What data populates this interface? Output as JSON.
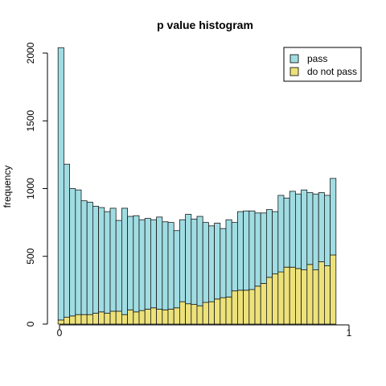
{
  "chart_data": {
    "type": "bar",
    "stacked": true,
    "title": "p value histogram",
    "xlabel": "",
    "ylabel": "frequency",
    "xlim": [
      0,
      1
    ],
    "ylim": [
      0,
      2050
    ],
    "x_ticks": [
      {
        "value": 0,
        "label": "0"
      },
      {
        "value": 1,
        "label": "1"
      }
    ],
    "y_ticks": [
      {
        "value": 0,
        "label": "0"
      },
      {
        "value": 500,
        "label": "500"
      },
      {
        "value": 1000,
        "label": "1000"
      },
      {
        "value": 1500,
        "label": "1500"
      },
      {
        "value": 2000,
        "label": "2000"
      }
    ],
    "bin_width": 0.02,
    "bins_start": -0.005,
    "grid": false,
    "legend_position": "top-right",
    "series": [
      {
        "name": "do not pass",
        "color": "#ede27a",
        "values": [
          30,
          50,
          60,
          70,
          70,
          70,
          80,
          90,
          80,
          95,
          95,
          70,
          105,
          90,
          100,
          110,
          120,
          110,
          105,
          110,
          120,
          165,
          150,
          145,
          135,
          160,
          165,
          185,
          195,
          200,
          245,
          250,
          250,
          255,
          280,
          300,
          345,
          370,
          385,
          420,
          420,
          410,
          400,
          440,
          400,
          460,
          430,
          510
        ]
      },
      {
        "name": "pass",
        "color": "#a0dde3",
        "values": [
          2010,
          1130,
          940,
          920,
          840,
          830,
          790,
          770,
          750,
          760,
          670,
          785,
          690,
          710,
          670,
          670,
          650,
          680,
          650,
          640,
          570,
          605,
          660,
          630,
          660,
          590,
          560,
          560,
          510,
          570,
          505,
          580,
          585,
          580,
          540,
          520,
          500,
          460,
          565,
          510,
          560,
          550,
          590,
          530,
          560,
          510,
          520,
          565
        ]
      }
    ]
  }
}
